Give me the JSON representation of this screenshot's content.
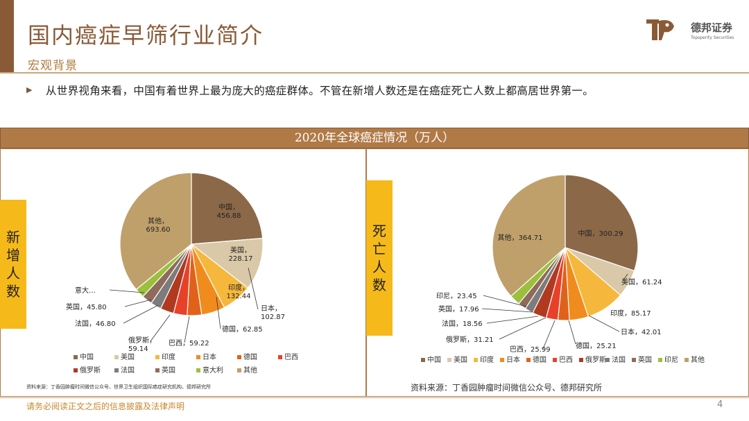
{
  "header": {
    "title": "国内癌症早筛行业简介",
    "subtitle": "宏观背景",
    "logo_name": "德邦证券",
    "logo_sub": "Topsperity Securities"
  },
  "intro": "从世界视角来看，中国有着世界上最为庞大的癌症群体。不管在新增人数还是在癌症死亡人数上都高居世界第一。",
  "banner": "2020年全球癌症情况（万人）",
  "left_panel": {
    "side_label": [
      "新",
      "增",
      "人",
      "数"
    ],
    "source": "资料来源：丁香园肿瘤时间微信公众号、世界卫生组织国际癌症研究机构、德邦研究所"
  },
  "right_panel": {
    "side_label": [
      "死",
      "亡",
      "人",
      "数"
    ],
    "source": "资料来源：丁香园肿瘤时间微信公众号、德邦研究所"
  },
  "footer": {
    "disclaimer": "请务必阅读正文之后的信息披露及法律声明",
    "page": "4"
  },
  "chart_data": [
    {
      "type": "pie",
      "title": "",
      "categories": [
        "中国",
        "美国",
        "印度",
        "日本",
        "德国",
        "巴西",
        "俄罗斯",
        "法国",
        "英国",
        "意大利",
        "其他"
      ],
      "values": [
        456.88,
        228.17,
        132.44,
        102.87,
        62.85,
        59.22,
        59.14,
        46.8,
        45.8,
        41.58,
        693.6
      ],
      "slice_labels": [
        "中国，\n456.88",
        "美国，\n228.17",
        "印度，\n132.44",
        "日本，\n102.87",
        "德国，62.85",
        "巴西，59.22",
        "俄罗斯，\n59.14",
        "法国，46.80",
        "英国，45.80",
        "意大…",
        "其他，\n693.60"
      ],
      "colors": [
        "#8b6848",
        "#d9c9a8",
        "#f5b83c",
        "#f08c1e",
        "#e0621a",
        "#e8412a",
        "#b03a20",
        "#7c7c7c",
        "#8e6b5a",
        "#9cbf3c",
        "#bfa06a"
      ],
      "legend": "bottom"
    },
    {
      "type": "pie",
      "title": "",
      "categories": [
        "中国",
        "美国",
        "印度",
        "日本",
        "德国",
        "巴西",
        "俄罗斯",
        "法国",
        "英国",
        "印尼",
        "其他"
      ],
      "values": [
        300.29,
        61.24,
        85.17,
        42.01,
        25.21,
        25.99,
        31.21,
        18.56,
        17.96,
        23.45,
        364.71
      ],
      "slice_labels": [
        "中国，300.29",
        "美国，61.24",
        "印度，85.17",
        "日本，42.01",
        "德国，25.21",
        "巴西，25.99",
        "俄罗斯，31.21",
        "法国，18.56",
        "英国，17.96",
        "印尼，23.45",
        "其他，364.71"
      ],
      "colors": [
        "#8b6848",
        "#d9c9a8",
        "#f5b83c",
        "#f08c1e",
        "#e0621a",
        "#e8412a",
        "#b03a20",
        "#7c7c7c",
        "#8e6b5a",
        "#9cbf3c",
        "#bfa06a"
      ],
      "legend": "bottom"
    }
  ]
}
